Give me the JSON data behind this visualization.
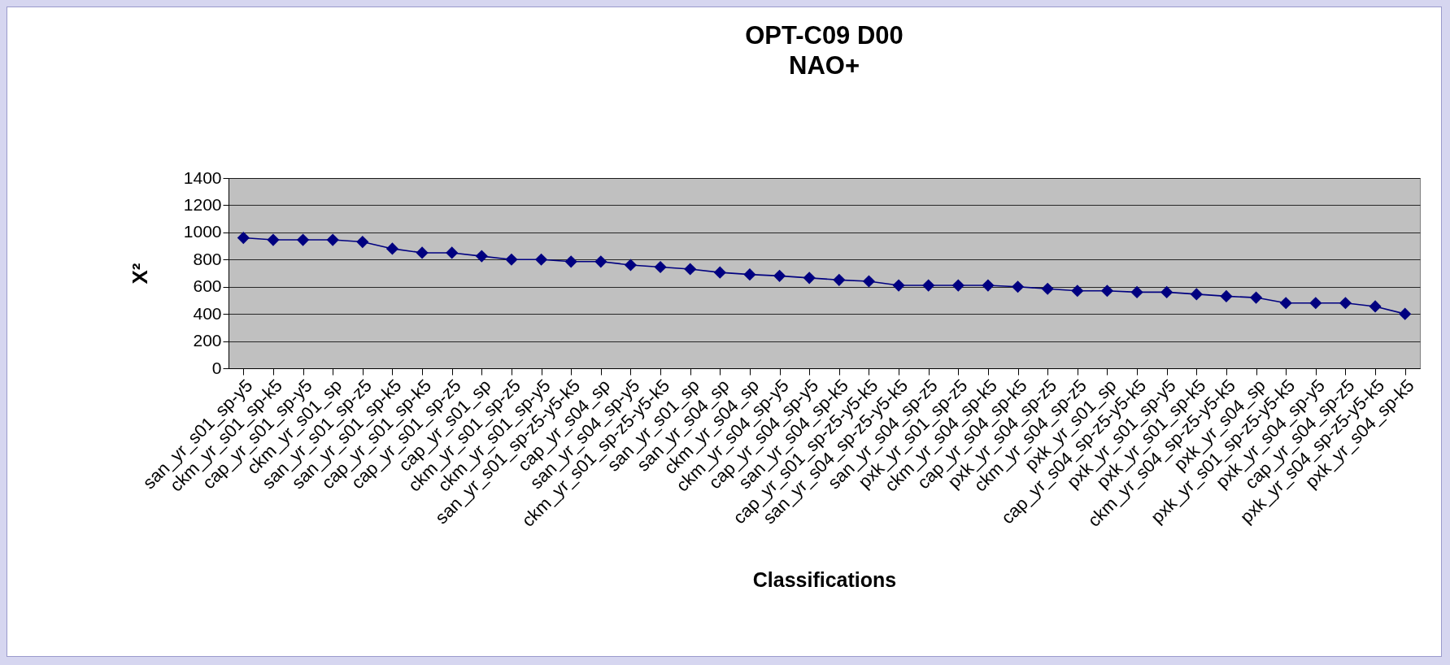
{
  "chart_data": {
    "type": "line",
    "title": "OPT-C09 D00",
    "subtitle": "NAO+",
    "xlabel": "Classifications",
    "ylabel": "X²",
    "categories": [
      "san_yr_s01_sp-y5",
      "ckm_yr_s01_sp-k5",
      "cap_yr_s01_sp-y5",
      "ckm_yr_s01_sp",
      "san_yr_s01_sp-z5",
      "san_yr_s01_sp-k5",
      "cap_yr_s01_sp-k5",
      "cap_yr_s01_sp-z5",
      "cap_yr_s01_sp",
      "ckm_yr_s01_sp-z5",
      "ckm_yr_s01_sp-y5",
      "san_yr_s01_sp-z5-y5-k5",
      "cap_yr_s04_sp",
      "san_yr_s04_sp-y5",
      "ckm_yr_s01_sp-z5-y5-k5",
      "san_yr_s01_sp",
      "san_yr_s04_sp",
      "ckm_yr_s04_sp",
      "ckm_yr_s04_sp-y5",
      "cap_yr_s04_sp-y5",
      "san_yr_s04_sp-k5",
      "cap_yr_s01_sp-z5-y5-k5",
      "san_yr_s04_sp-z5-y5-k5",
      "san_yr_s04_sp-z5",
      "pxk_yr_s01_sp-z5",
      "ckm_yr_s04_sp-k5",
      "cap_yr_s04_sp-k5",
      "pxk_yr_s04_sp-z5",
      "ckm_yr_s04_sp-z5",
      "pxk_yr_s01_sp",
      "cap_yr_s04_sp-z5-y5-k5",
      "pxk_yr_s01_sp-y5",
      "pxk_yr_s01_sp-k5",
      "ckm_yr_s04_sp-z5-y5-k5",
      "pxk_yr_s04_sp",
      "pxk_yr_s01_sp-z5-y5-k5",
      "pxk_yr_s04_sp-y5",
      "cap_yr_s04_sp-z5",
      "pxk_yr_s04_sp-z5-y5-k5",
      "pxk_yr_s04_sp-k5"
    ],
    "series": [
      {
        "color": "#000080",
        "values": [
          960,
          945,
          945,
          945,
          930,
          880,
          850,
          850,
          825,
          800,
          800,
          785,
          785,
          760,
          745,
          730,
          705,
          690,
          680,
          665,
          650,
          640,
          610,
          610,
          610,
          610,
          600,
          585,
          570,
          570,
          560,
          560,
          545,
          530,
          520,
          480,
          480,
          480,
          455,
          400
        ]
      }
    ],
    "ylim": [
      0,
      1400
    ],
    "yticks": [
      0,
      200,
      400,
      600,
      800,
      1000,
      1200,
      1400
    ],
    "grid": "y",
    "marker": "diamond",
    "line_style": "solid",
    "legend": false
  }
}
